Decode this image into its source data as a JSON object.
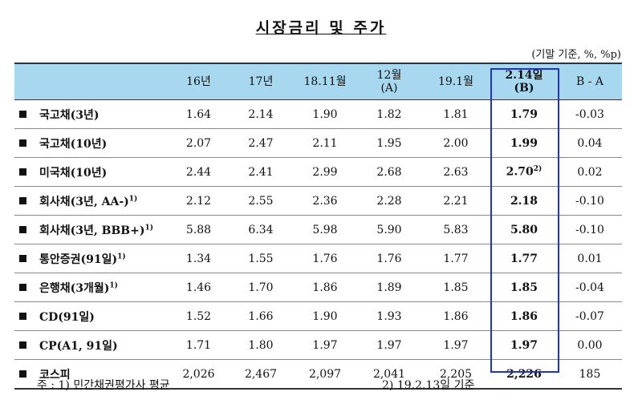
{
  "title": "시장금리 및 주가",
  "unit_note": "(기말 기준, %, %p)",
  "table": {
    "headers": [
      "16년",
      "17년",
      "18.11월",
      "12월\n(A)",
      "19.1월",
      "2.14일\n(B)",
      "B - A"
    ],
    "rows": [
      {
        "name": "국고채(3년)",
        "values": [
          "1.64",
          "2.14",
          "1.90",
          "1.82",
          "1.81",
          "1.79",
          "-0.03"
        ]
      },
      {
        "name": "국고채(10년)",
        "values": [
          "2.07",
          "2.47",
          "2.11",
          "1.95",
          "2.00",
          "1.99",
          "0.04"
        ]
      },
      {
        "name": "미국채(10년)",
        "values": [
          "2.44",
          "2.41",
          "2.99",
          "2.68",
          "2.63",
          "2.70",
          "0.02"
        ],
        "b_note": "2)"
      },
      {
        "name": "회사채(3년, AA-)",
        "name_note": "1)",
        "values": [
          "2.12",
          "2.55",
          "2.36",
          "2.28",
          "2.21",
          "2.18",
          "-0.10"
        ]
      },
      {
        "name": "회사채(3년, BBB+)",
        "name_note": "1)",
        "values": [
          "5.88",
          "6.34",
          "5.98",
          "5.90",
          "5.83",
          "5.80",
          "-0.10"
        ]
      },
      {
        "name": "통안증권(91일)",
        "name_note": "1)",
        "values": [
          "1.34",
          "1.55",
          "1.76",
          "1.76",
          "1.77",
          "1.77",
          "0.01"
        ]
      },
      {
        "name": "은행채(3개월)",
        "name_note": "1)",
        "values": [
          "1.46",
          "1.70",
          "1.86",
          "1.89",
          "1.85",
          "1.85",
          "-0.04"
        ]
      },
      {
        "name": "CD(91일)",
        "values": [
          "1.52",
          "1.66",
          "1.90",
          "1.93",
          "1.86",
          "1.86",
          "-0.07"
        ]
      },
      {
        "name": "CP(A1, 91일)",
        "values": [
          "1.71",
          "1.80",
          "1.97",
          "1.97",
          "1.97",
          "1.97",
          "0.00"
        ]
      },
      {
        "name": "코스피",
        "values": [
          "2,026",
          "2,467",
          "2,097",
          "2,041",
          "2,205",
          "2,226",
          "185"
        ]
      }
    ]
  },
  "footnotes": [
    "주 : 1) 민간채권평가사 평균",
    "2) 19.2.13일 기준"
  ]
}
